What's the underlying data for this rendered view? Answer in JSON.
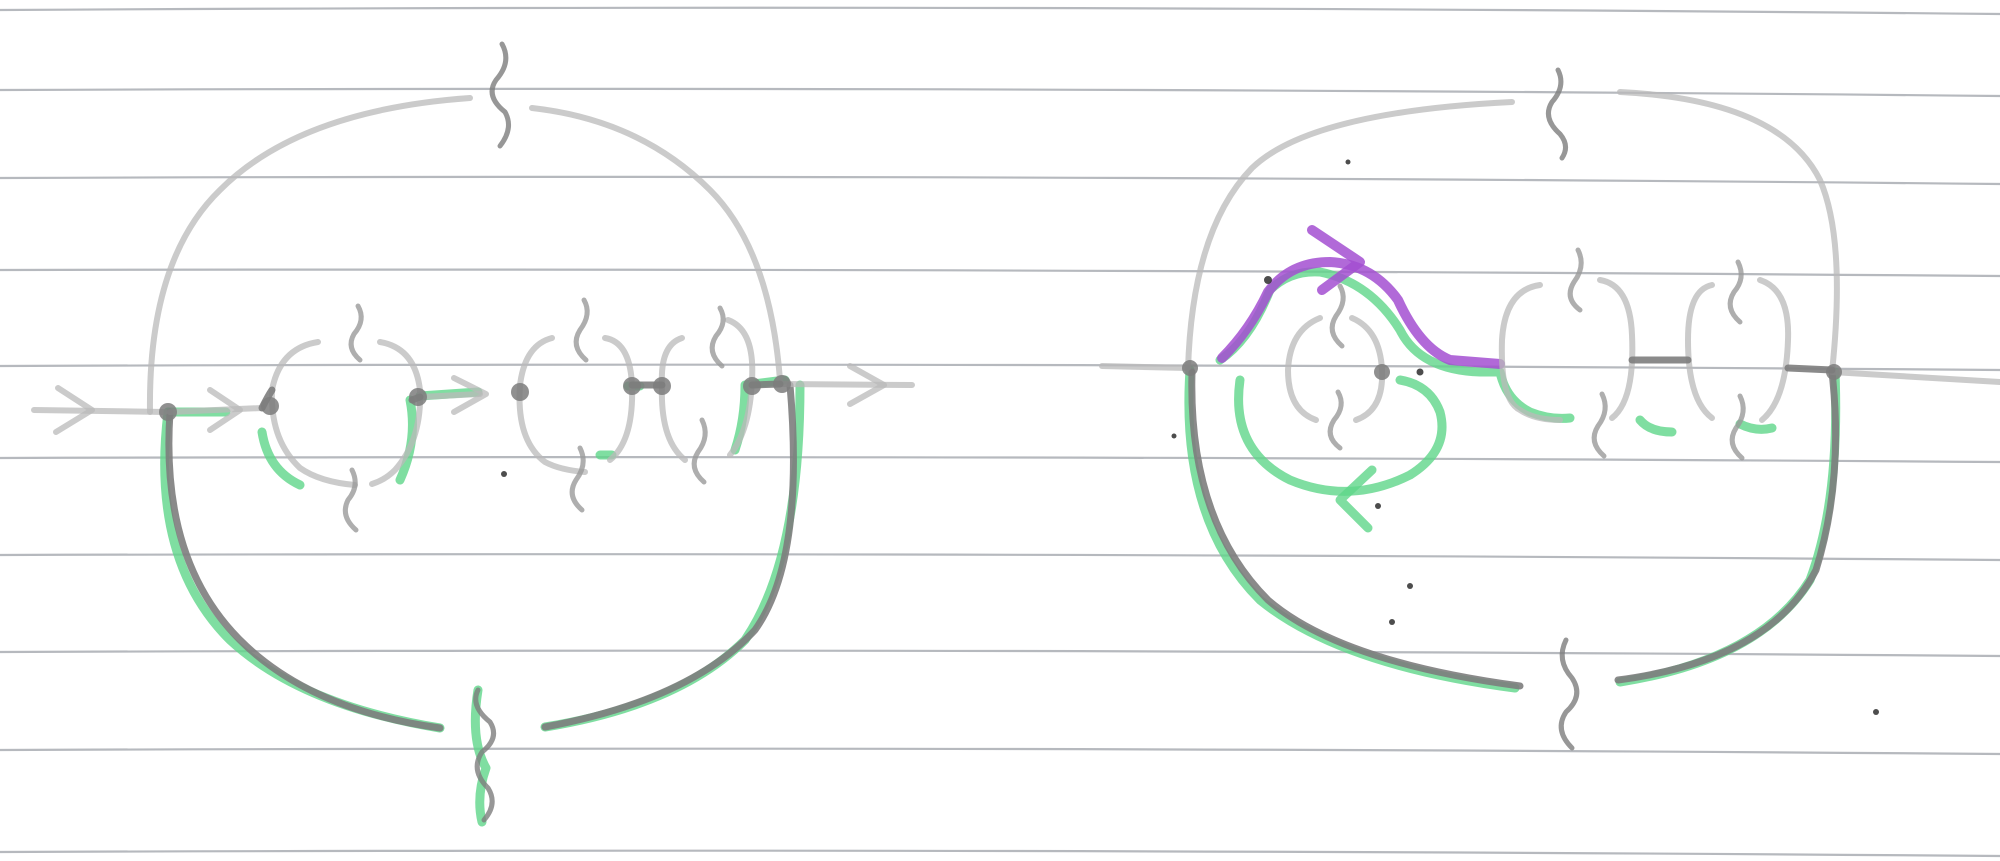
{
  "page": {
    "background": "#ffffff",
    "ruled_lines": 9
  },
  "colors": {
    "ruled_line": "#a9adb3",
    "pencil_light": "#b9b9b9",
    "pencil_dark": "#7d7d7d",
    "green_highlighter": "#5fd68a",
    "purple_highlighter": "#a34fd1",
    "speck": "#3a3a3a"
  },
  "diagrams": [
    {
      "id": "left-diagram",
      "description_tags": [
        "outer-loop",
        "internal-chain",
        "arrows-in-out",
        "green-lower-arc"
      ],
      "internal_bubbles": 3
    },
    {
      "id": "right-diagram",
      "description_tags": [
        "outer-loop",
        "internal-chain",
        "purple-arrow",
        "green-loop-arrow",
        "green-lower-arc"
      ],
      "internal_bubbles": 3
    }
  ]
}
